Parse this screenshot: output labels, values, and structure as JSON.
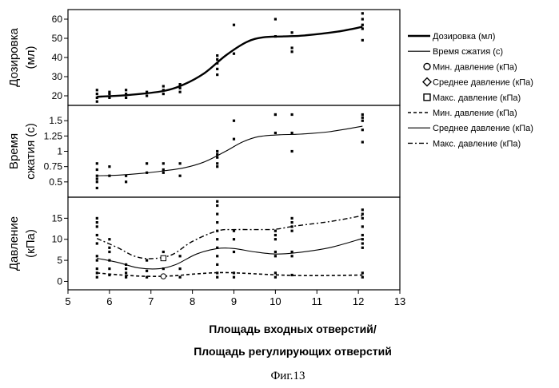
{
  "chart_data": {
    "type": "scatter",
    "xlabel_line1": "Площадь входных отверстий/",
    "xlabel_line2": "Площадь регулирующих  отверстий",
    "caption": "Фиг.13",
    "xlim": [
      5,
      13
    ],
    "xticks": [
      "5",
      "6",
      "7",
      "8",
      "9",
      "10",
      "11",
      "12",
      "13"
    ],
    "legend": [
      {
        "label": "Дозировка (мл)",
        "style": "thick-line"
      },
      {
        "label": "Время сжатия (с)",
        "style": "thin-line"
      },
      {
        "label": "Мин. давление (кПа)",
        "style": "circle"
      },
      {
        "label": "Среднее давление (кПа)",
        "style": "diamond"
      },
      {
        "label": "Макс. давление (кПа)",
        "style": "square"
      },
      {
        "label": "Мин. давление (кПа)",
        "style": "dashed-line"
      },
      {
        "label": "Среднее давление (кПа)",
        "style": "thin-line"
      },
      {
        "label": "Макс. давление (кПа)",
        "style": "dash-dot-line"
      }
    ],
    "panels": [
      {
        "ylabel_line1": "Дозировка",
        "ylabel_line2": "(мл)",
        "ylim": [
          15,
          65
        ],
        "yticks": [
          "20",
          "30",
          "40",
          "50",
          "60"
        ],
        "points": [
          [
            5.7,
            17
          ],
          [
            5.7,
            19
          ],
          [
            5.7,
            21
          ],
          [
            5.7,
            23
          ],
          [
            6.0,
            19
          ],
          [
            6.0,
            21
          ],
          [
            6.0,
            22
          ],
          [
            6.4,
            19
          ],
          [
            6.4,
            21
          ],
          [
            6.4,
            23
          ],
          [
            6.9,
            20
          ],
          [
            6.9,
            22
          ],
          [
            7.3,
            21
          ],
          [
            7.3,
            23
          ],
          [
            7.3,
            25
          ],
          [
            7.7,
            22
          ],
          [
            7.7,
            24
          ],
          [
            7.7,
            26
          ],
          [
            8.6,
            31
          ],
          [
            8.6,
            34
          ],
          [
            8.6,
            37
          ],
          [
            8.6,
            39
          ],
          [
            8.6,
            41
          ],
          [
            9.0,
            42
          ],
          [
            9.0,
            57
          ],
          [
            10.0,
            51
          ],
          [
            10.0,
            60
          ],
          [
            10.4,
            43
          ],
          [
            10.4,
            45
          ],
          [
            10.4,
            53
          ],
          [
            12.1,
            49
          ],
          [
            12.1,
            55
          ],
          [
            12.1,
            57
          ],
          [
            12.1,
            60
          ],
          [
            12.1,
            63
          ]
        ],
        "series": [
          {
            "name": "Дозировка (мл)",
            "style": "thick-line",
            "x": [
              5.7,
              6.5,
              7.3,
              7.8,
              8.3,
              8.8,
              9.3,
              9.7,
              10.2,
              10.7,
              11.5,
              12.1
            ],
            "y": [
              19.5,
              20.5,
              22.5,
              26,
              32,
              41,
              48,
              50.5,
              51,
              51.5,
              53.5,
              56
            ]
          }
        ]
      },
      {
        "ylabel_line1": "Время",
        "ylabel_line2": "сжатия (с)",
        "ylim": [
          0.25,
          1.75
        ],
        "yticks": [
          "0.5",
          "0.75",
          "1",
          "1.25",
          "1.5"
        ],
        "points": [
          [
            5.7,
            0.4
          ],
          [
            5.7,
            0.5
          ],
          [
            5.7,
            0.55
          ],
          [
            5.7,
            0.6
          ],
          [
            5.7,
            0.7
          ],
          [
            5.7,
            0.8
          ],
          [
            6.0,
            0.6
          ],
          [
            6.0,
            0.75
          ],
          [
            6.4,
            0.5
          ],
          [
            6.4,
            0.6
          ],
          [
            6.9,
            0.65
          ],
          [
            6.9,
            0.8
          ],
          [
            7.3,
            0.65
          ],
          [
            7.3,
            0.7
          ],
          [
            7.3,
            0.8
          ],
          [
            7.7,
            0.6
          ],
          [
            7.7,
            0.8
          ],
          [
            8.6,
            0.75
          ],
          [
            8.6,
            0.8
          ],
          [
            8.6,
            0.9
          ],
          [
            8.6,
            0.95
          ],
          [
            8.6,
            1.0
          ],
          [
            9.0,
            1.2
          ],
          [
            9.0,
            1.5
          ],
          [
            10.0,
            1.3
          ],
          [
            10.0,
            1.6
          ],
          [
            10.0,
            1.6
          ],
          [
            10.4,
            1.0
          ],
          [
            10.4,
            1.3
          ],
          [
            10.4,
            1.6
          ],
          [
            12.1,
            1.15
          ],
          [
            12.1,
            1.35
          ],
          [
            12.1,
            1.5
          ],
          [
            12.1,
            1.55
          ],
          [
            12.1,
            1.6
          ]
        ],
        "series": [
          {
            "name": "Время сжатия (с)",
            "style": "thin-line",
            "x": [
              5.7,
              6.2,
              6.8,
              7.3,
              7.8,
              8.3,
              8.8,
              9.2,
              9.6,
              10.1,
              10.6,
              11.3,
              12.1
            ],
            "y": [
              0.6,
              0.61,
              0.64,
              0.68,
              0.73,
              0.83,
              1.0,
              1.15,
              1.24,
              1.27,
              1.28,
              1.32,
              1.41
            ]
          }
        ]
      },
      {
        "ylabel_line1": "Давление",
        "ylabel_line2": "(кПа)",
        "ylim": [
          -2,
          20
        ],
        "yticks": [
          "0",
          "5",
          "10",
          "15"
        ],
        "points": [
          [
            5.7,
            1
          ],
          [
            5.7,
            2
          ],
          [
            5.7,
            3
          ],
          [
            5.7,
            5
          ],
          [
            5.7,
            6
          ],
          [
            5.7,
            9
          ],
          [
            5.7,
            11
          ],
          [
            5.7,
            13
          ],
          [
            5.7,
            14
          ],
          [
            5.7,
            15
          ],
          [
            6.0,
            1.5
          ],
          [
            6.0,
            3
          ],
          [
            6.0,
            5
          ],
          [
            6.0,
            7
          ],
          [
            6.0,
            8
          ],
          [
            6.0,
            10
          ],
          [
            6.4,
            1
          ],
          [
            6.4,
            2
          ],
          [
            6.4,
            3
          ],
          [
            6.4,
            4
          ],
          [
            6.9,
            1
          ],
          [
            6.9,
            2.5
          ],
          [
            6.9,
            5
          ],
          [
            7.3,
            1
          ],
          [
            7.3,
            3
          ],
          [
            7.3,
            5.5
          ],
          [
            7.3,
            7
          ],
          [
            7.7,
            1
          ],
          [
            7.7,
            3
          ],
          [
            7.7,
            6
          ],
          [
            8.6,
            1
          ],
          [
            8.6,
            2
          ],
          [
            8.6,
            4
          ],
          [
            8.6,
            6
          ],
          [
            8.6,
            8
          ],
          [
            8.6,
            10
          ],
          [
            8.6,
            12
          ],
          [
            8.6,
            14
          ],
          [
            8.6,
            16
          ],
          [
            8.6,
            18
          ],
          [
            8.6,
            19
          ],
          [
            9.0,
            1
          ],
          [
            9.0,
            2
          ],
          [
            9.0,
            7
          ],
          [
            9.0,
            10
          ],
          [
            9.0,
            12
          ],
          [
            10.0,
            1
          ],
          [
            10.0,
            2
          ],
          [
            10.0,
            6
          ],
          [
            10.0,
            7
          ],
          [
            10.0,
            10
          ],
          [
            10.0,
            11
          ],
          [
            10.0,
            12
          ],
          [
            10.4,
            1.5
          ],
          [
            10.4,
            6
          ],
          [
            10.4,
            7
          ],
          [
            10.4,
            12
          ],
          [
            10.4,
            13
          ],
          [
            10.4,
            14
          ],
          [
            10.4,
            15
          ],
          [
            12.1,
            1
          ],
          [
            12.1,
            2
          ],
          [
            12.1,
            8
          ],
          [
            12.1,
            9
          ],
          [
            12.1,
            10
          ],
          [
            12.1,
            11
          ],
          [
            12.1,
            13
          ],
          [
            12.1,
            15
          ],
          [
            12.1,
            16
          ],
          [
            12.1,
            17
          ]
        ],
        "series": [
          {
            "name": "Мин. давление (кПа)",
            "style": "dashed-line",
            "x": [
              5.7,
              6.3,
              6.9,
              7.5,
              8.1,
              8.7,
              9.3,
              9.9,
              10.5,
              11.3,
              12.1
            ],
            "y": [
              2.0,
              1.5,
              1.2,
              1.3,
              1.8,
              2.1,
              1.9,
              1.6,
              1.4,
              1.4,
              1.5
            ]
          },
          {
            "name": "Среднее давление (кПа)",
            "style": "thin-line",
            "x": [
              5.7,
              6.2,
              6.7,
              7.2,
              7.6,
              8.1,
              8.6,
              9.0,
              9.5,
              10.0,
              10.5,
              11.3,
              12.1
            ],
            "y": [
              5.5,
              4.5,
              3.2,
              3.0,
              4.0,
              6.5,
              7.8,
              7.8,
              7.0,
              6.5,
              6.8,
              8.0,
              10.2
            ]
          },
          {
            "name": "Макс. давление (кПа)",
            "style": "dash-dot-line",
            "x": [
              5.7,
              6.2,
              6.6,
              7.0,
              7.5,
              8.0,
              8.6,
              9.0,
              9.5,
              10.0,
              10.5,
              11.3,
              12.1
            ],
            "y": [
              10.2,
              8.0,
              6.0,
              5.4,
              6.3,
              9.5,
              12.0,
              12.3,
              12.3,
              12.4,
              13.2,
              14.2,
              15.6
            ]
          }
        ]
      }
    ]
  }
}
